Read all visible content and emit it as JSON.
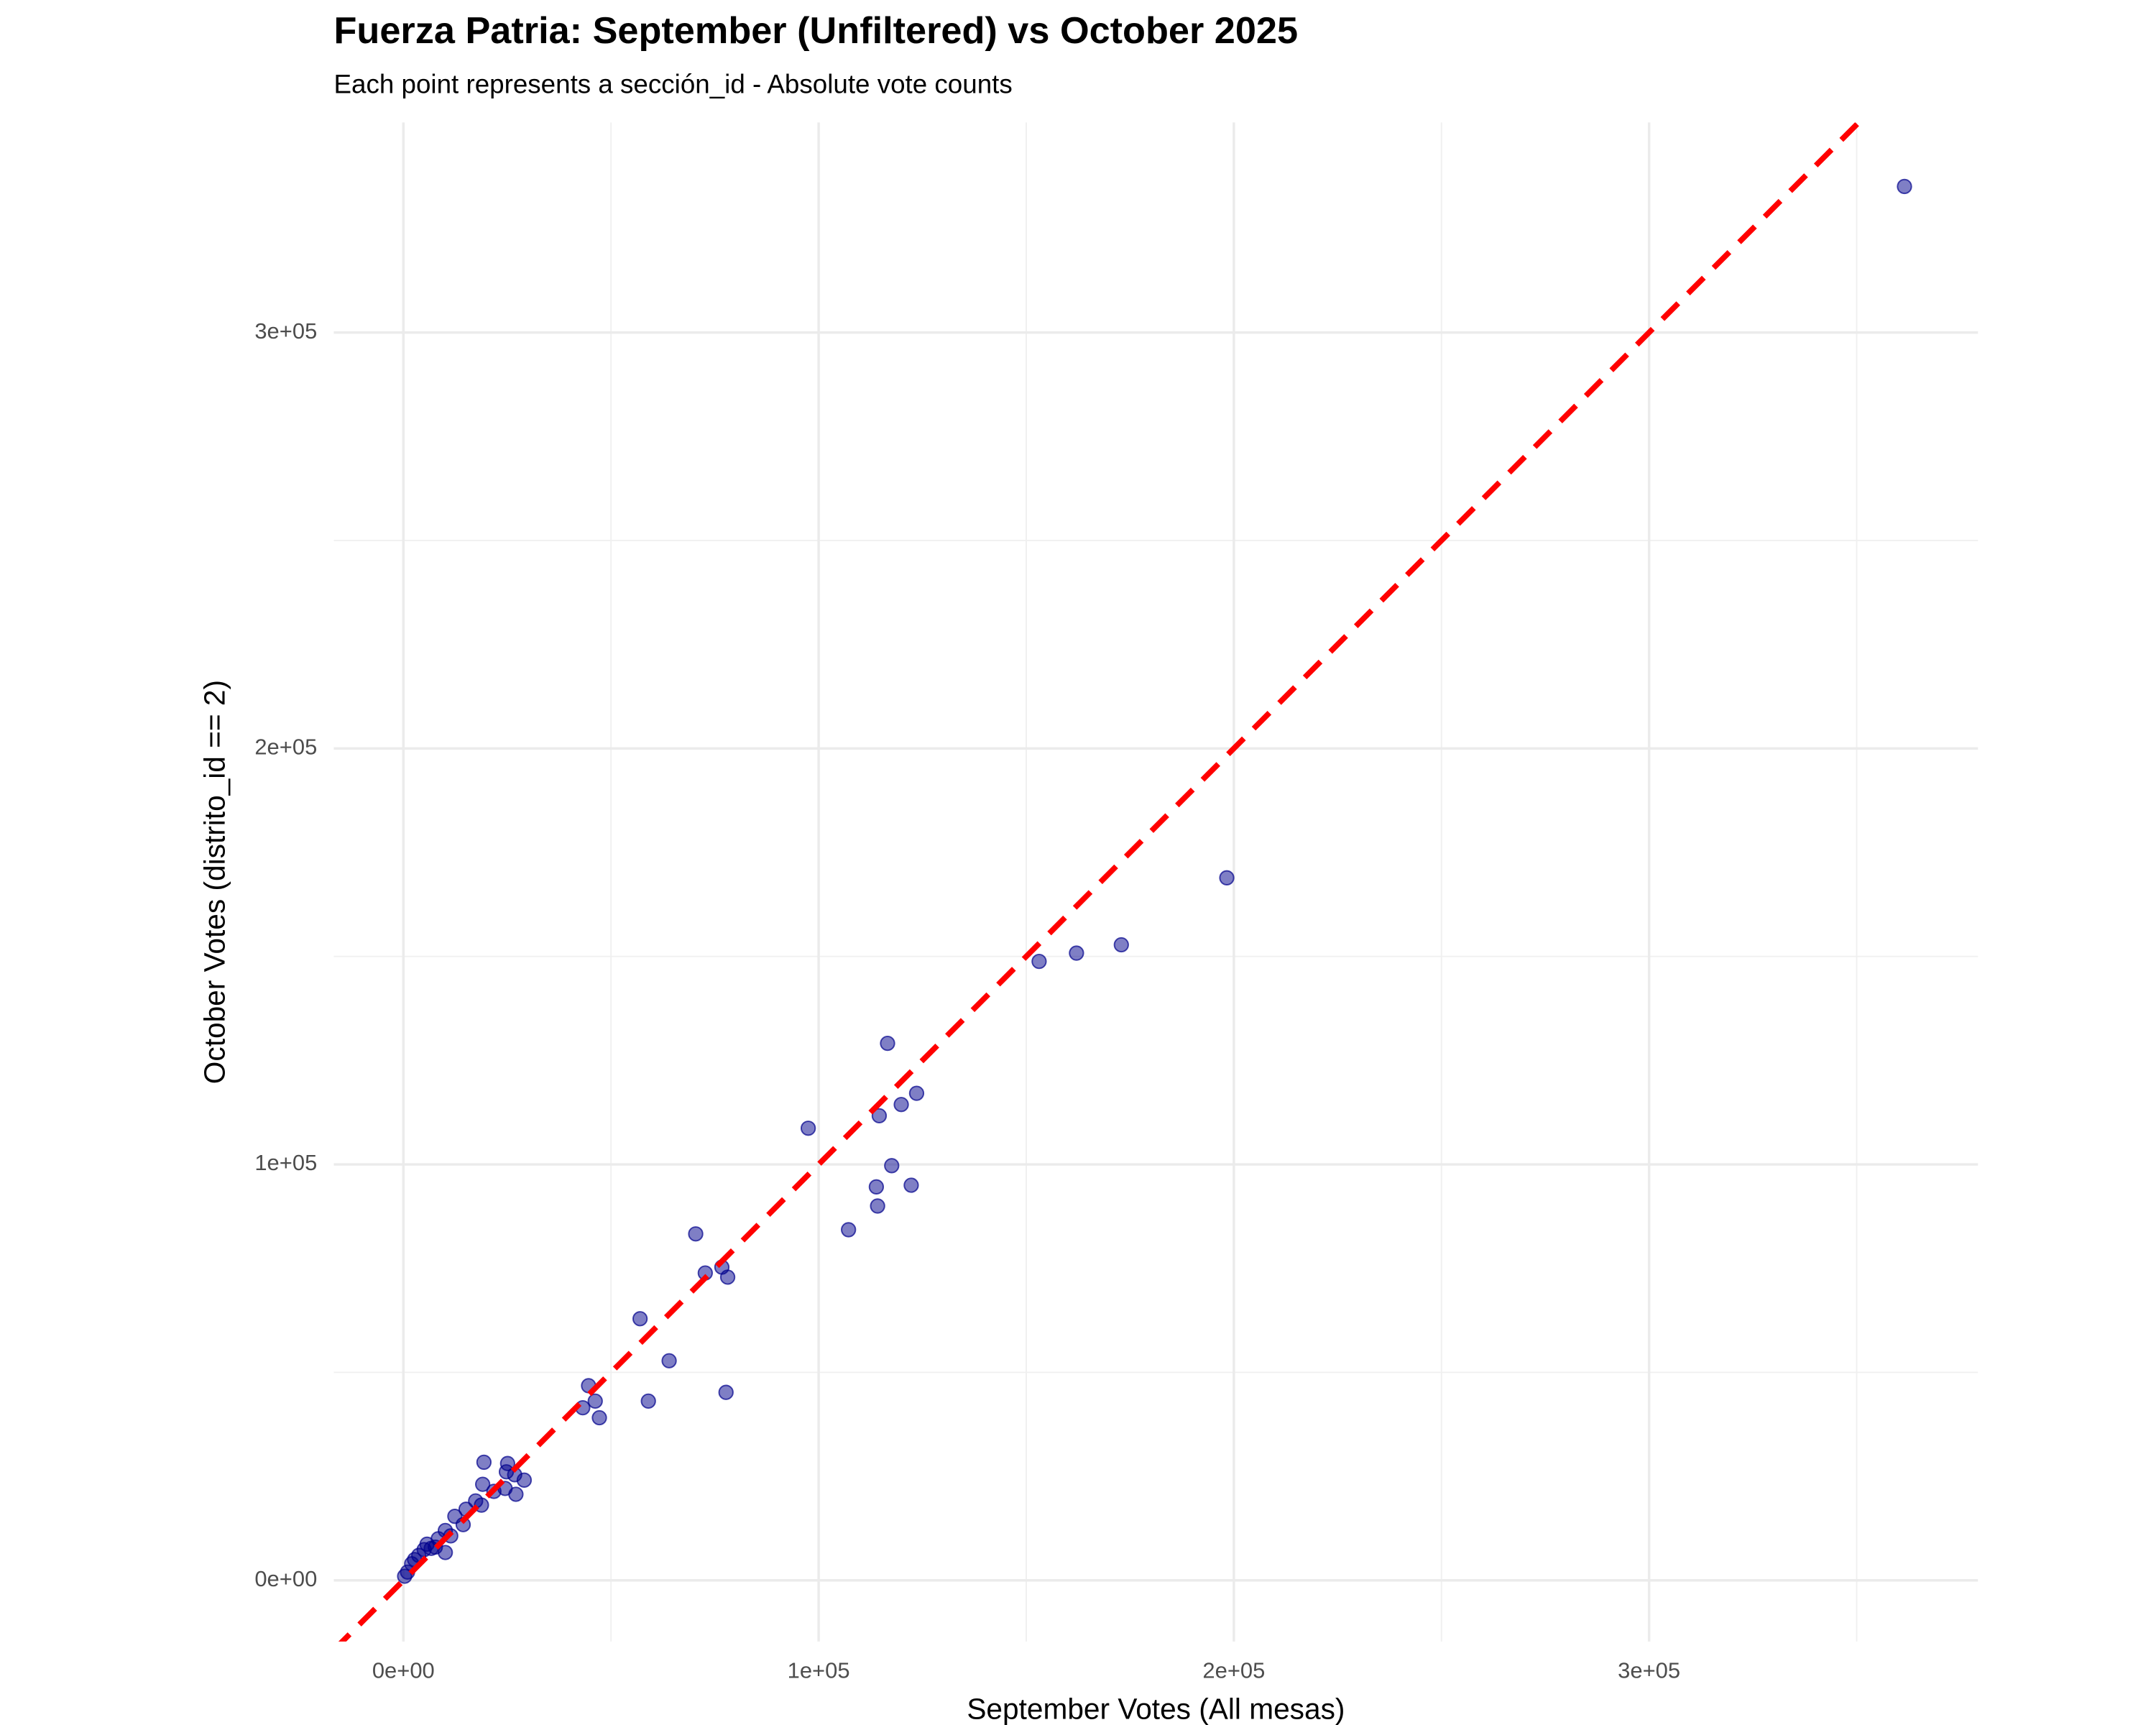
{
  "chart_data": {
    "type": "scatter",
    "title": "Fuerza Patria: September (Unfiltered) vs October 2025",
    "subtitle": "Each point represents a sección_id - Absolute vote counts",
    "x_label": "September Votes (All mesas)",
    "y_label": "October Votes (distrito_id == 2)",
    "color": "#00008b",
    "x": [
      361500,
      198300,
      172900,
      162100,
      153100,
      116600,
      123600,
      119900,
      114600,
      97500,
      117600,
      113900,
      122300,
      114200,
      107200,
      70400,
      72700,
      76700,
      78100,
      57000,
      64000,
      44600,
      46200,
      59000,
      77700,
      43200,
      47200,
      19400,
      25100,
      24800,
      26800,
      29100,
      19100,
      24500,
      27100,
      21800,
      17400,
      18800,
      15100,
      12400,
      14400,
      10100,
      11400,
      8400,
      10100,
      5700,
      7700,
      3700,
      5000,
      2000,
      1000,
      300,
      2700,
      6700
    ],
    "values": [
      335100,
      168900,
      152800,
      150800,
      148800,
      129100,
      117100,
      114400,
      111700,
      108700,
      99700,
      94600,
      95000,
      90000,
      84300,
      83300,
      73900,
      75300,
      72900,
      62900,
      52800,
      46800,
      43100,
      43100,
      45200,
      41500,
      39100,
      28400,
      28100,
      26100,
      25400,
      24100,
      23100,
      22100,
      20700,
      21400,
      19100,
      18100,
      17100,
      15400,
      13400,
      12000,
      10700,
      10000,
      6700,
      8700,
      8000,
      6000,
      7400,
      4000,
      2000,
      1000,
      5000,
      7700
    ],
    "xlim": [
      -16750,
      379200
    ],
    "ylim": [
      -14700,
      350500
    ],
    "xticks": [
      {
        "value": 0,
        "label": "0e+00"
      },
      {
        "value": 100000,
        "label": "1e+05"
      },
      {
        "value": 200000,
        "label": "2e+05"
      },
      {
        "value": 300000,
        "label": "3e+05"
      }
    ],
    "yticks": [
      {
        "value": 0,
        "label": "0e+00"
      },
      {
        "value": 100000,
        "label": "1e+05"
      },
      {
        "value": 200000,
        "label": "2e+05"
      },
      {
        "value": 300000,
        "label": "3e+05"
      }
    ],
    "x_minor_grid": [
      50000,
      150000,
      250000,
      350000
    ],
    "y_minor_grid": [
      50000,
      150000,
      250000
    ],
    "grid": true,
    "reference_line": {
      "slope": 1,
      "intercept": 0,
      "color": "#ff0000"
    }
  }
}
